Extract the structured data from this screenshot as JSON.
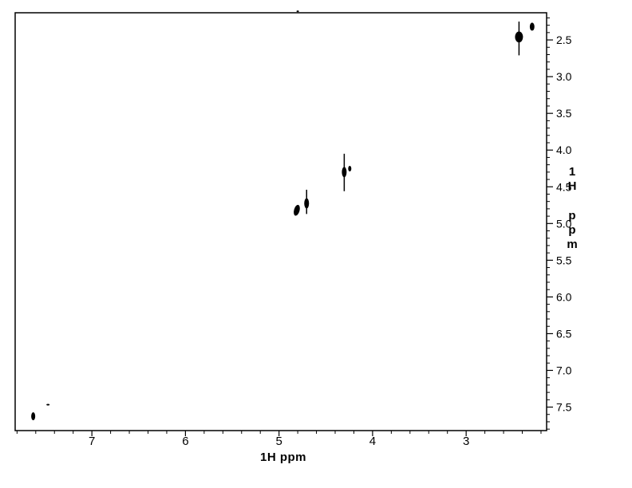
{
  "chart_data": {
    "type": "scatter",
    "description": "2D 1H-1H NMR spectrum, diagonal peaks, black contours on white",
    "x_axis": {
      "label": "1H ppm",
      "range_ppm": [
        7.82,
        2.14
      ],
      "major_ticks": [
        7,
        6,
        5,
        4,
        3
      ],
      "major_labels": [
        "7",
        "6",
        "5",
        "4",
        "3"
      ],
      "minor_step": 0.2
    },
    "y_axis": {
      "label": "1H ppm",
      "label_stacked": [
        "1",
        "H",
        "p",
        "p",
        "m"
      ],
      "range_ppm": [
        2.13,
        7.82
      ],
      "major_ticks": [
        2.5,
        3.0,
        3.5,
        4.0,
        4.5,
        5.0,
        5.5,
        6.0,
        6.5,
        7.0,
        7.5
      ],
      "major_labels": [
        "2.5",
        "3.0",
        "3.5",
        "4.0",
        "4.5",
        "5.0",
        "5.5",
        "6.0",
        "6.5",
        "7.0",
        "7.5"
      ],
      "minor_step": 0.1
    },
    "peaks": [
      {
        "name": "diagonal-peak-2.44",
        "x_ppm": 2.435,
        "y_ppm": 2.46,
        "w_ppm": 0.085,
        "h_ppm": 0.15,
        "streak_y_ppm": [
          2.25,
          2.71
        ]
      },
      {
        "name": "satellite-peak-2.30",
        "x_ppm": 2.295,
        "y_ppm": 2.32,
        "w_ppm": 0.05,
        "h_ppm": 0.11
      },
      {
        "name": "diagonal-peak-4.30",
        "x_ppm": 4.303,
        "y_ppm": 4.3,
        "w_ppm": 0.051,
        "h_ppm": 0.14,
        "streak_y_ppm": [
          4.05,
          4.56
        ]
      },
      {
        "name": "satellite-peak-4.25",
        "x_ppm": 4.244,
        "y_ppm": 4.253,
        "w_ppm": 0.034,
        "h_ppm": 0.076
      },
      {
        "name": "diagonal-peak-4.70",
        "x_ppm": 4.705,
        "y_ppm": 4.726,
        "w_ppm": 0.051,
        "h_ppm": 0.14,
        "streak_y_ppm": [
          4.54,
          4.87
        ]
      },
      {
        "name": "diagonal-peak-4.81",
        "x_ppm": 4.81,
        "y_ppm": 4.82,
        "w_ppm": 0.06,
        "h_ppm": 0.152,
        "tilt_deg": 15
      },
      {
        "name": "diagonal-peak-7.63",
        "x_ppm": 7.627,
        "y_ppm": 7.625,
        "w_ppm": 0.043,
        "h_ppm": 0.11
      },
      {
        "name": "artifact-dot-7.46",
        "x_ppm": 7.469,
        "y_ppm": 7.467,
        "w_ppm": 0.034,
        "h_ppm": 0.022
      },
      {
        "name": "edge-artifact-top",
        "x_ppm": 4.8,
        "y_ppm": 2.11,
        "w_ppm": 0.026,
        "h_ppm": 0.022
      }
    ],
    "style": {
      "ink_color": "#000000",
      "background_color": "#ffffff"
    }
  }
}
